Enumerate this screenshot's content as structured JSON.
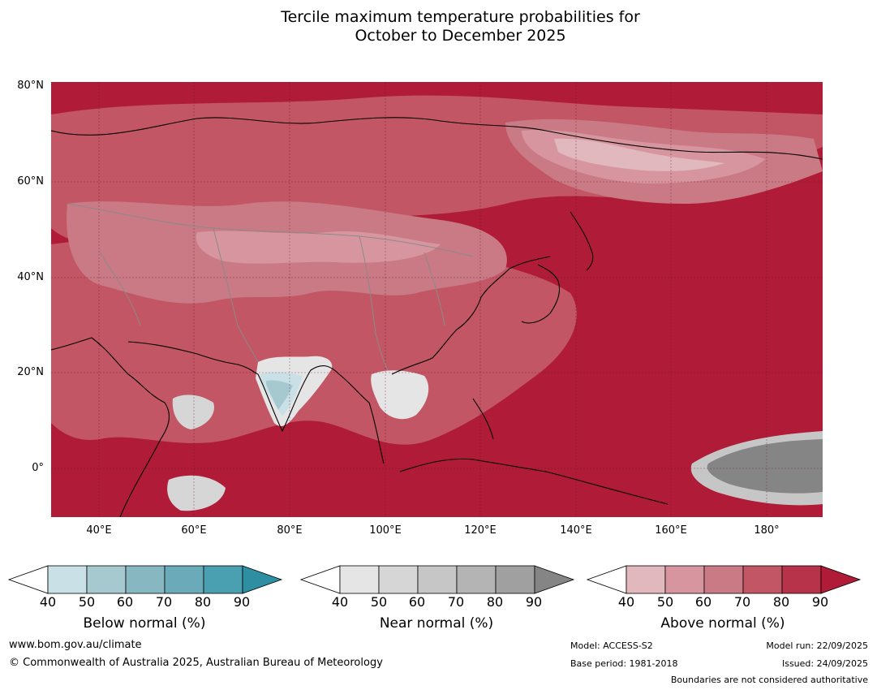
{
  "title": {
    "line1": "Tercile maximum temperature probabilities for",
    "line2": "October to December 2025"
  },
  "map": {
    "lat_labels": [
      "80°N",
      "60°N",
      "40°N",
      "20°N",
      "0°"
    ],
    "lon_labels": [
      "40°E",
      "60°E",
      "80°E",
      "100°E",
      "120°E",
      "140°E",
      "160°E",
      "180°"
    ]
  },
  "colorbars": [
    {
      "label": "Below normal (%)",
      "ticks": [
        "40",
        "50",
        "60",
        "70",
        "80",
        "90"
      ],
      "colors": [
        "#ffffff",
        "#c9e1e6",
        "#a6c8cf",
        "#87b7c1",
        "#6aaab9",
        "#4a9fb0",
        "#2e8fa3"
      ]
    },
    {
      "label": "Near normal (%)",
      "ticks": [
        "40",
        "50",
        "60",
        "70",
        "80",
        "90"
      ],
      "colors": [
        "#ffffff",
        "#e5e5e5",
        "#d6d6d6",
        "#c6c6c6",
        "#b4b4b4",
        "#a0a0a0",
        "#858585"
      ]
    },
    {
      "label": "Above normal (%)",
      "ticks": [
        "40",
        "50",
        "60",
        "70",
        "80",
        "90"
      ],
      "colors": [
        "#ffffff",
        "#e0b8be",
        "#d7969f",
        "#c97a85",
        "#c25665",
        "#b73349",
        "#b01c37"
      ]
    }
  ],
  "footer": {
    "url": "www.bom.gov.au/climate",
    "copyright": "© Commonwealth of Australia 2025, Australian Bureau of Meteorology",
    "model": "Model: ACCESS-S2",
    "base_period": "Base period: 1981-2018",
    "model_run": "Model run: 22/09/2025",
    "issued": "Issued: 24/09/2025",
    "disclaimer": "Boundaries are not considered authoritative"
  }
}
